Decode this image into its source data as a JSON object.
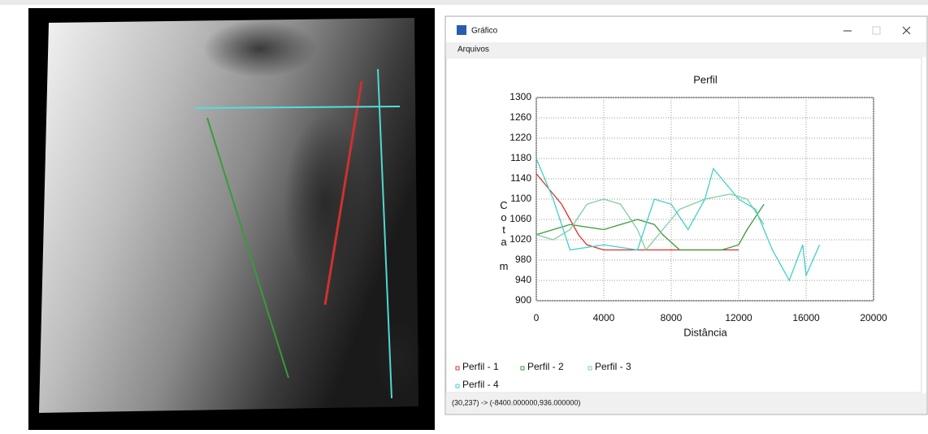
{
  "window": {
    "title": "Gráfico",
    "menu": "Arquivos",
    "status": "(30,237) -> (-8400.000000,936.000000)"
  },
  "chart_data": {
    "type": "line",
    "title": "Perfil",
    "xlabel": "Distância",
    "ylabel": "Cota m",
    "xlim": [
      0,
      20000
    ],
    "xticks": [
      0,
      4000,
      8000,
      12000,
      16000,
      20000
    ],
    "ylim": [
      900,
      1300
    ],
    "yticks": [
      900,
      940,
      980,
      1020,
      1060,
      1100,
      1140,
      1180,
      1220,
      1260,
      1300
    ],
    "grid": true,
    "series": [
      {
        "name": "Perfil - 1",
        "color": "#e03030",
        "x": [
          0,
          500,
          1000,
          1500,
          2000,
          2500,
          3000,
          4000,
          6000,
          8000,
          10000,
          12000
        ],
        "values": [
          1150,
          1130,
          1110,
          1090,
          1060,
          1030,
          1010,
          1000,
          1000,
          1000,
          1000,
          1000
        ]
      },
      {
        "name": "Perfil - 2",
        "color": "#3a9a3a",
        "x": [
          0,
          2000,
          3000,
          4000,
          5000,
          6000,
          7000,
          7500,
          8500,
          10000,
          11000,
          12000,
          12500,
          13500
        ],
        "values": [
          1030,
          1050,
          1045,
          1040,
          1050,
          1060,
          1050,
          1030,
          1000,
          1000,
          1000,
          1010,
          1040,
          1090
        ]
      },
      {
        "name": "Perfil - 3",
        "color": "#7fcf9f",
        "x": [
          0,
          1000,
          2000,
          3000,
          4000,
          5000,
          6000,
          6500,
          7500,
          8500,
          10000,
          11500,
          12500,
          13500
        ],
        "values": [
          1030,
          1020,
          1040,
          1090,
          1100,
          1090,
          1040,
          1000,
          1040,
          1080,
          1100,
          1110,
          1100,
          1050
        ]
      },
      {
        "name": "Perfil - 4",
        "color": "#40d0c8",
        "x": [
          0,
          1000,
          2000,
          4000,
          6000,
          7000,
          8000,
          9000,
          10000,
          10500,
          12000,
          13000,
          14000,
          15000,
          15800,
          16000,
          16800
        ],
        "values": [
          1180,
          1100,
          1000,
          1010,
          1000,
          1100,
          1090,
          1040,
          1100,
          1160,
          1100,
          1080,
          1000,
          940,
          1010,
          950,
          1010
        ]
      }
    ]
  }
}
